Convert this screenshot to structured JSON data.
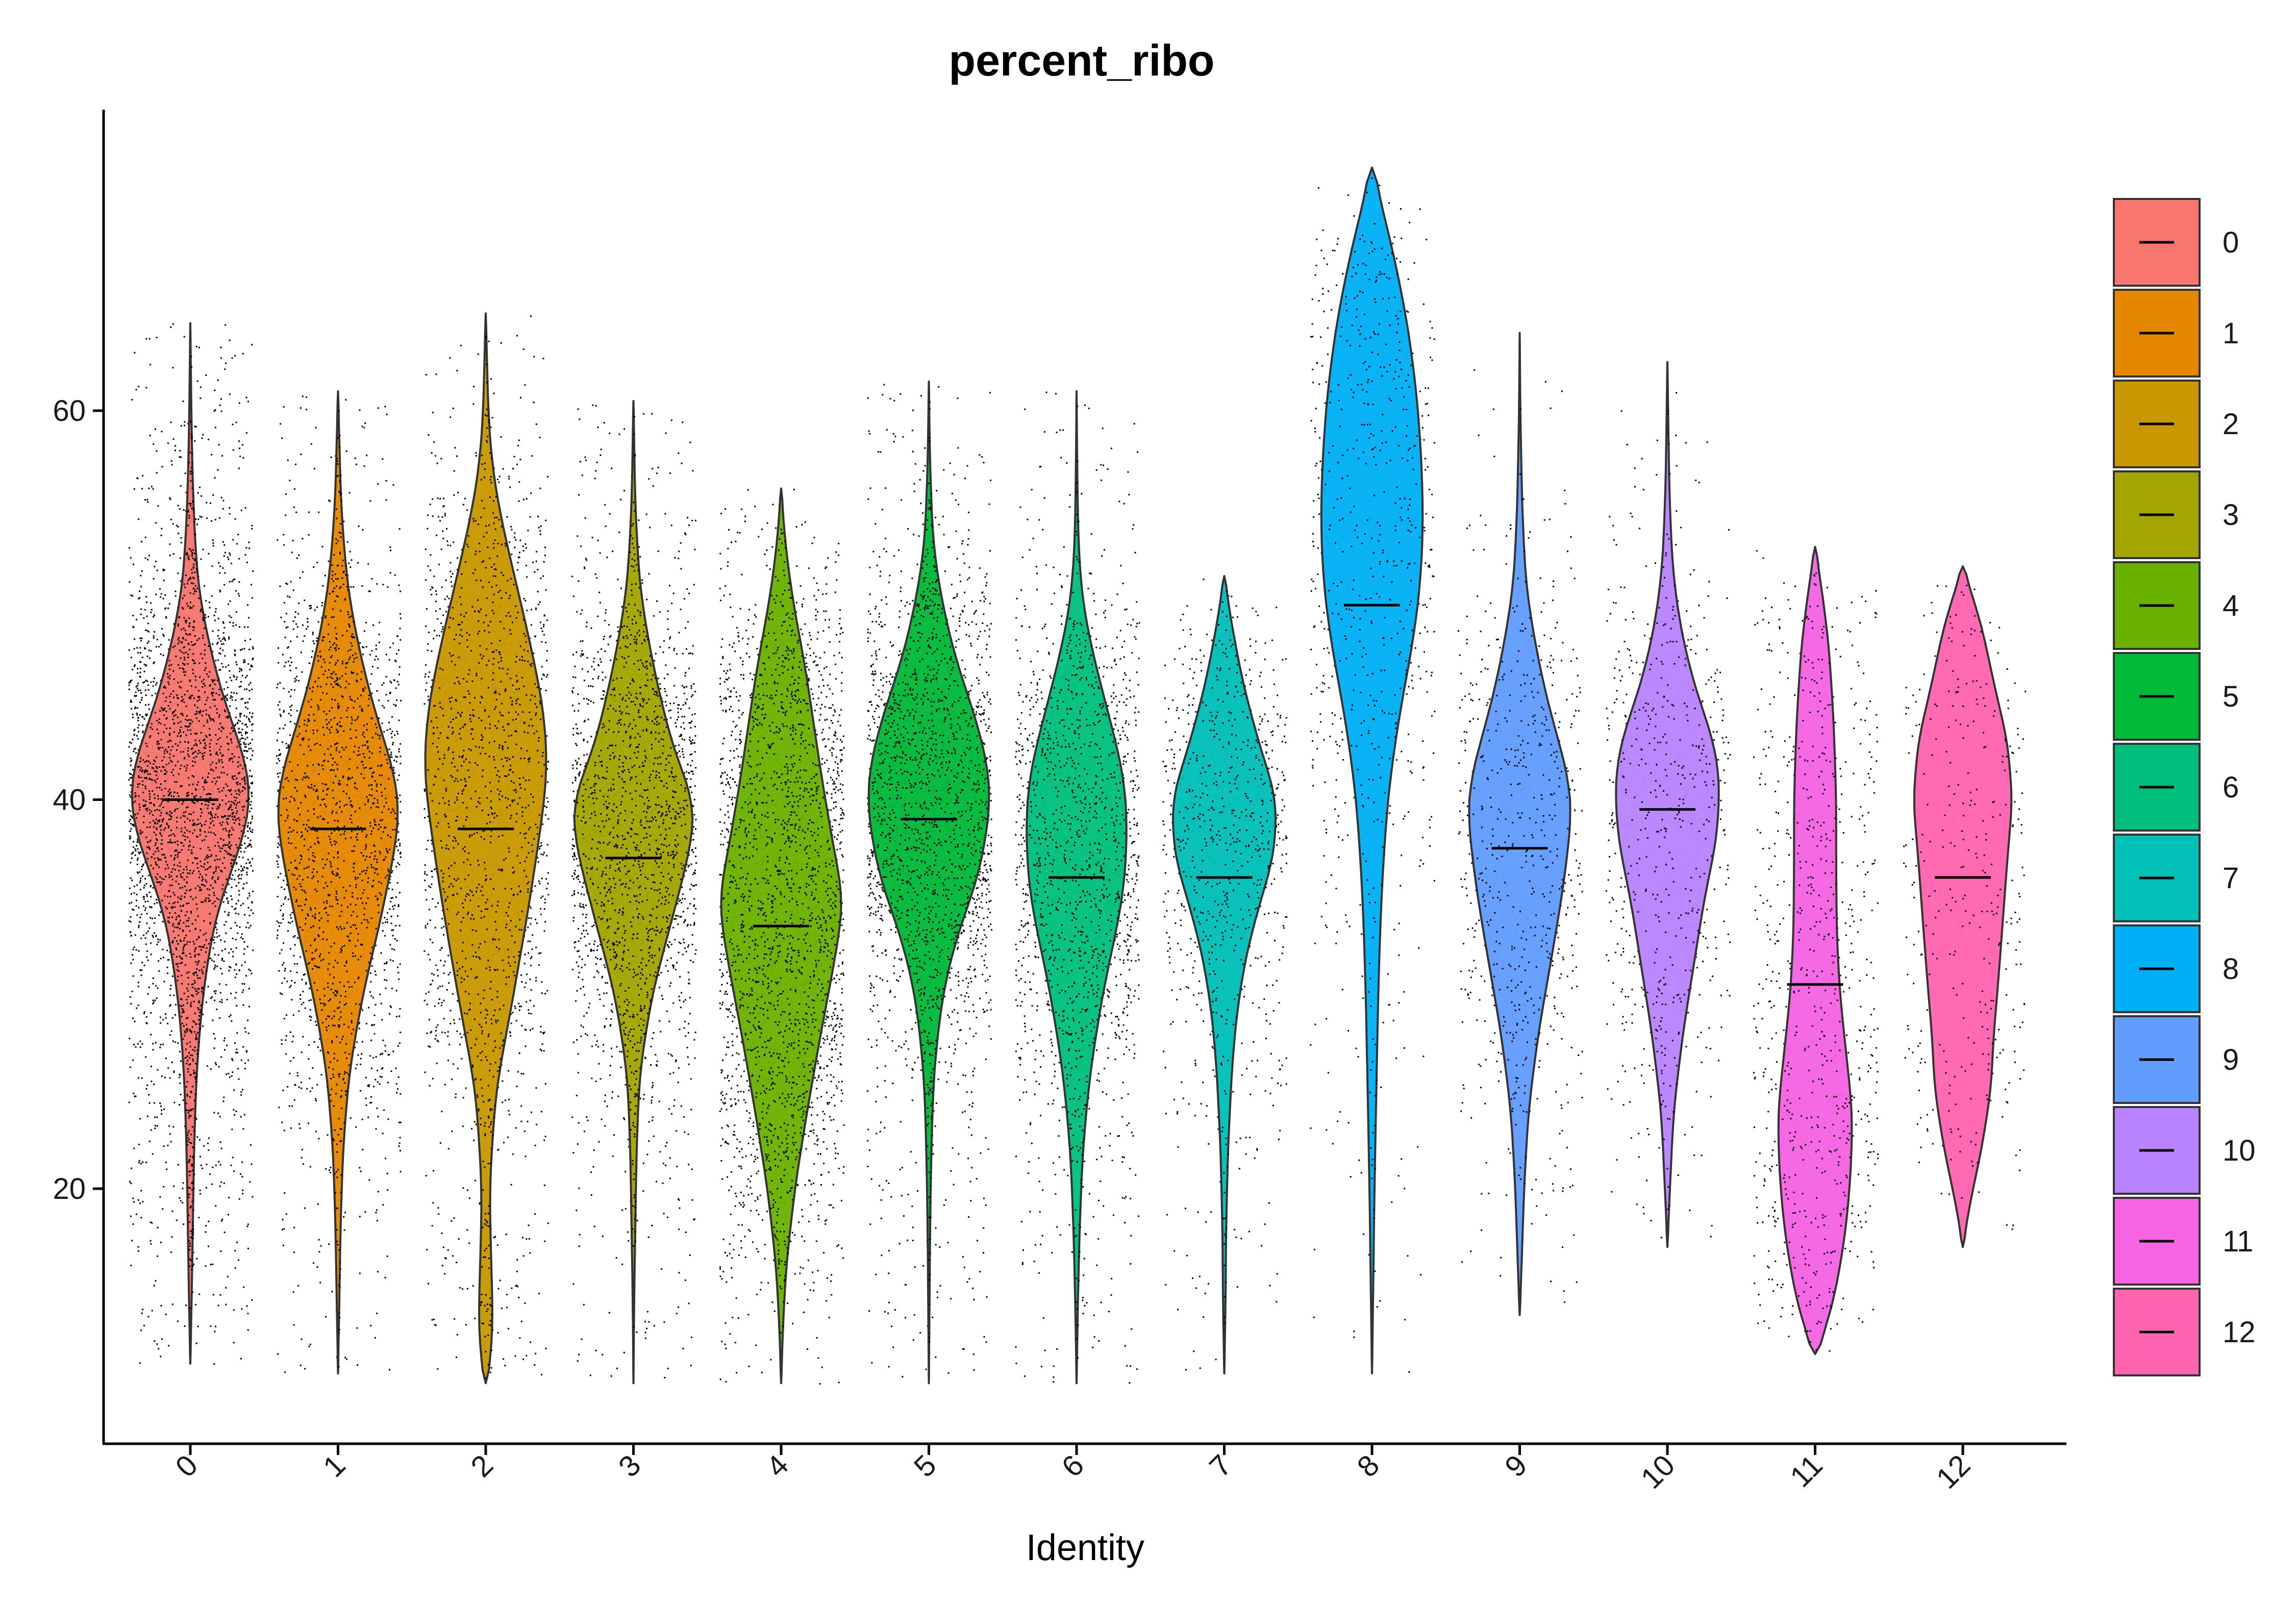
{
  "chart_data": {
    "type": "violin",
    "title": "percent_ribo",
    "xlabel": "Identity",
    "ylabel": "",
    "ylim": [
      8.5,
      75.5
    ],
    "yticks": [
      20,
      40,
      60
    ],
    "categories": [
      "0",
      "1",
      "2",
      "3",
      "4",
      "5",
      "6",
      "7",
      "8",
      "9",
      "10",
      "11",
      "12"
    ],
    "legend": {
      "position": "right",
      "entries": [
        "0",
        "1",
        "2",
        "3",
        "4",
        "5",
        "6",
        "7",
        "8",
        "9",
        "10",
        "11",
        "12"
      ]
    },
    "grid": false,
    "points_shown": true,
    "series": [
      {
        "name": "0",
        "color": "#F8766D",
        "min": 11.0,
        "max": 64.5,
        "median": 40.0,
        "halfwidth": 0.42,
        "n": 3000,
        "profile": [
          [
            11,
            0.0
          ],
          [
            14,
            0.02
          ],
          [
            18,
            0.04
          ],
          [
            22,
            0.06
          ],
          [
            26,
            0.1
          ],
          [
            30,
            0.2
          ],
          [
            34,
            0.4
          ],
          [
            38,
            0.85
          ],
          [
            40,
            1.0
          ],
          [
            42,
            0.9
          ],
          [
            45,
            0.55
          ],
          [
            48,
            0.3
          ],
          [
            51,
            0.12
          ],
          [
            55,
            0.05
          ],
          [
            59,
            0.02
          ],
          [
            64.5,
            0.0
          ]
        ]
      },
      {
        "name": "1",
        "color": "#E58700",
        "min": 10.5,
        "max": 61.0,
        "median": 38.5,
        "halfwidth": 0.42,
        "n": 1900,
        "profile": [
          [
            10.5,
            0.0
          ],
          [
            14,
            0.02
          ],
          [
            18,
            0.04
          ],
          [
            22,
            0.08
          ],
          [
            26,
            0.18
          ],
          [
            30,
            0.4
          ],
          [
            34,
            0.7
          ],
          [
            38,
            0.95
          ],
          [
            40,
            1.0
          ],
          [
            42,
            0.85
          ],
          [
            45,
            0.55
          ],
          [
            48,
            0.32
          ],
          [
            51,
            0.15
          ],
          [
            55,
            0.05
          ],
          [
            61,
            0.0
          ]
        ]
      },
      {
        "name": "2",
        "color": "#C99800",
        "min": 10.0,
        "max": 65.0,
        "median": 38.5,
        "halfwidth": 0.42,
        "n": 1700,
        "profile": [
          [
            10,
            0.0
          ],
          [
            11,
            0.08
          ],
          [
            13,
            0.12
          ],
          [
            16,
            0.09
          ],
          [
            20,
            0.06
          ],
          [
            25,
            0.16
          ],
          [
            30,
            0.45
          ],
          [
            35,
            0.72
          ],
          [
            40,
            0.95
          ],
          [
            42,
            1.0
          ],
          [
            45,
            0.92
          ],
          [
            49,
            0.65
          ],
          [
            53,
            0.35
          ],
          [
            56,
            0.15
          ],
          [
            59,
            0.05
          ],
          [
            65,
            0.0
          ]
        ]
      },
      {
        "name": "3",
        "color": "#A3A500",
        "min": 10.0,
        "max": 60.5,
        "median": 37.0,
        "halfwidth": 0.42,
        "n": 1800,
        "profile": [
          [
            10,
            0.0
          ],
          [
            14,
            0.01
          ],
          [
            18,
            0.03
          ],
          [
            22,
            0.05
          ],
          [
            26,
            0.1
          ],
          [
            30,
            0.3
          ],
          [
            33,
            0.55
          ],
          [
            36,
            0.8
          ],
          [
            38,
            0.95
          ],
          [
            40,
            1.0
          ],
          [
            42,
            0.7
          ],
          [
            45,
            0.45
          ],
          [
            48,
            0.25
          ],
          [
            51,
            0.1
          ],
          [
            55,
            0.03
          ],
          [
            60.5,
            0.0
          ]
        ]
      },
      {
        "name": "4",
        "color": "#6BB100",
        "min": 10.0,
        "max": 56.0,
        "median": 33.5,
        "halfwidth": 0.42,
        "n": 2400,
        "profile": [
          [
            10,
            0.0
          ],
          [
            13,
            0.03
          ],
          [
            16,
            0.08
          ],
          [
            20,
            0.22
          ],
          [
            24,
            0.42
          ],
          [
            28,
            0.64
          ],
          [
            31,
            0.82
          ],
          [
            34,
            0.98
          ],
          [
            35,
            1.0
          ],
          [
            38,
            0.82
          ],
          [
            41,
            0.66
          ],
          [
            44,
            0.52
          ],
          [
            47,
            0.38
          ],
          [
            50,
            0.2
          ],
          [
            53,
            0.07
          ],
          [
            56,
            0.0
          ]
        ]
      },
      {
        "name": "5",
        "color": "#00BA38",
        "min": 10.0,
        "max": 61.5,
        "median": 39.0,
        "halfwidth": 0.42,
        "n": 2200,
        "profile": [
          [
            10,
            0.0
          ],
          [
            14,
            0.01
          ],
          [
            18,
            0.02
          ],
          [
            22,
            0.04
          ],
          [
            26,
            0.08
          ],
          [
            30,
            0.22
          ],
          [
            33,
            0.45
          ],
          [
            36,
            0.8
          ],
          [
            39,
            0.97
          ],
          [
            41,
            1.0
          ],
          [
            44,
            0.78
          ],
          [
            47,
            0.45
          ],
          [
            50,
            0.22
          ],
          [
            53,
            0.07
          ],
          [
            57,
            0.02
          ],
          [
            61.5,
            0.0
          ]
        ]
      },
      {
        "name": "6",
        "color": "#00BF7D",
        "min": 10.0,
        "max": 61.0,
        "median": 36.0,
        "halfwidth": 0.42,
        "n": 1500,
        "profile": [
          [
            10,
            0.0
          ],
          [
            14,
            0.02
          ],
          [
            18,
            0.05
          ],
          [
            22,
            0.1
          ],
          [
            26,
            0.22
          ],
          [
            30,
            0.42
          ],
          [
            33,
            0.62
          ],
          [
            35,
            0.75
          ],
          [
            38,
            0.82
          ],
          [
            41,
            0.78
          ],
          [
            44,
            0.55
          ],
          [
            47,
            0.3
          ],
          [
            50,
            0.1
          ],
          [
            53,
            0.03
          ],
          [
            57,
            0.01
          ],
          [
            61,
            0.0
          ]
        ]
      },
      {
        "name": "7",
        "color": "#00C0B8",
        "min": 10.5,
        "max": 51.5,
        "median": 36.0,
        "halfwidth": 0.42,
        "n": 750,
        "profile": [
          [
            10.5,
            0.0
          ],
          [
            14,
            0.02
          ],
          [
            18,
            0.03
          ],
          [
            22,
            0.06
          ],
          [
            26,
            0.12
          ],
          [
            29,
            0.2
          ],
          [
            32,
            0.35
          ],
          [
            35,
            0.6
          ],
          [
            37,
            0.8
          ],
          [
            40,
            0.85
          ],
          [
            43,
            0.55
          ],
          [
            46,
            0.3
          ],
          [
            49,
            0.12
          ],
          [
            51.5,
            0.0
          ]
        ]
      },
      {
        "name": "8",
        "color": "#00B0F6",
        "min": 10.5,
        "max": 72.5,
        "median": 50.0,
        "halfwidth": 0.42,
        "n": 700,
        "profile": [
          [
            10.5,
            0.0
          ],
          [
            15,
            0.02
          ],
          [
            20,
            0.04
          ],
          [
            25,
            0.07
          ],
          [
            30,
            0.1
          ],
          [
            35,
            0.15
          ],
          [
            40,
            0.25
          ],
          [
            44,
            0.42
          ],
          [
            47,
            0.6
          ],
          [
            50,
            0.75
          ],
          [
            53,
            0.82
          ],
          [
            56,
            0.82
          ],
          [
            60,
            0.75
          ],
          [
            64,
            0.6
          ],
          [
            67,
            0.42
          ],
          [
            69,
            0.28
          ],
          [
            71,
            0.12
          ],
          [
            72.5,
            0.0
          ]
        ]
      },
      {
        "name": "9",
        "color": "#619CFF",
        "min": 13.5,
        "max": 64.0,
        "median": 37.5,
        "halfwidth": 0.42,
        "n": 600,
        "profile": [
          [
            13.5,
            0.0
          ],
          [
            16,
            0.03
          ],
          [
            20,
            0.07
          ],
          [
            24,
            0.14
          ],
          [
            28,
            0.3
          ],
          [
            32,
            0.52
          ],
          [
            35,
            0.68
          ],
          [
            38,
            0.8
          ],
          [
            40,
            0.85
          ],
          [
            42,
            0.72
          ],
          [
            45,
            0.45
          ],
          [
            48,
            0.25
          ],
          [
            51,
            0.1
          ],
          [
            55,
            0.04
          ],
          [
            60,
            0.01
          ],
          [
            64,
            0.0
          ]
        ]
      },
      {
        "name": "10",
        "color": "#B983FF",
        "min": 17.0,
        "max": 62.5,
        "median": 39.5,
        "halfwidth": 0.42,
        "n": 550,
        "profile": [
          [
            17,
            0.0
          ],
          [
            20,
            0.04
          ],
          [
            24,
            0.1
          ],
          [
            28,
            0.25
          ],
          [
            32,
            0.45
          ],
          [
            35,
            0.6
          ],
          [
            38,
            0.8
          ],
          [
            41,
            0.85
          ],
          [
            43,
            0.75
          ],
          [
            46,
            0.42
          ],
          [
            49,
            0.2
          ],
          [
            52,
            0.08
          ],
          [
            56,
            0.03
          ],
          [
            62.5,
            0.0
          ]
        ]
      },
      {
        "name": "11",
        "color": "#F564E3",
        "min": 11.5,
        "max": 53.0,
        "median": 30.5,
        "halfwidth": 0.42,
        "n": 650,
        "profile": [
          [
            11.5,
            0.0
          ],
          [
            12.5,
            0.15
          ],
          [
            15,
            0.35
          ],
          [
            18,
            0.5
          ],
          [
            21,
            0.58
          ],
          [
            24,
            0.6
          ],
          [
            27,
            0.5
          ],
          [
            30,
            0.4
          ],
          [
            33,
            0.35
          ],
          [
            36,
            0.34
          ],
          [
            40,
            0.34
          ],
          [
            44,
            0.3
          ],
          [
            48,
            0.22
          ],
          [
            51,
            0.1
          ],
          [
            53,
            0.0
          ]
        ]
      },
      {
        "name": "12",
        "color": "#FF64B0",
        "min": 17.0,
        "max": 52.0,
        "median": 36.0,
        "halfwidth": 0.42,
        "n": 350,
        "profile": [
          [
            17,
            0.0
          ],
          [
            19,
            0.1
          ],
          [
            22,
            0.3
          ],
          [
            25,
            0.45
          ],
          [
            28,
            0.5
          ],
          [
            31,
            0.58
          ],
          [
            34,
            0.65
          ],
          [
            37,
            0.72
          ],
          [
            40,
            0.8
          ],
          [
            43,
            0.72
          ],
          [
            46,
            0.5
          ],
          [
            49,
            0.3
          ],
          [
            52,
            0.0
          ]
        ]
      }
    ]
  }
}
